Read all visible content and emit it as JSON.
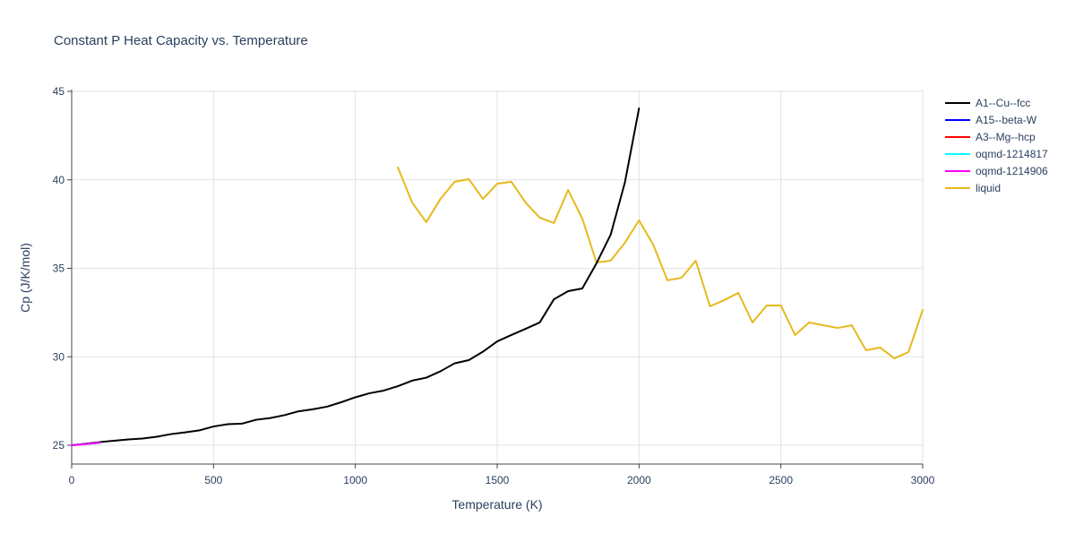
{
  "chart_data": {
    "type": "line",
    "title": "Constant P Heat Capacity vs. Temperature",
    "xlabel": "Temperature (K)",
    "ylabel": "Cp (J/K/mol)",
    "xlim": [
      0,
      3000
    ],
    "ylim": [
      24,
      45
    ],
    "xticks": [
      0,
      500,
      1000,
      1500,
      2000,
      2500,
      3000
    ],
    "xtick_labels": [
      "0",
      "500",
      "1000",
      "1500",
      "2000",
      "2500",
      "3000"
    ],
    "yticks": [
      25,
      30,
      35,
      40,
      45
    ],
    "ytick_labels": [
      "25",
      "30",
      "35",
      "40",
      "45"
    ],
    "grid": true,
    "legend_position": "right",
    "series": [
      {
        "name": "A1--Cu--fcc",
        "color": "#000000",
        "x": [
          0,
          100,
          200,
          250,
          300,
          350,
          400,
          450,
          500,
          550,
          600,
          650,
          700,
          750,
          800,
          850,
          900,
          950,
          1000,
          1050,
          1100,
          1150,
          1200,
          1250,
          1300,
          1350,
          1400,
          1450,
          1500,
          1550,
          1600,
          1650,
          1700,
          1750,
          1800,
          1850,
          1900,
          1950,
          2000
        ],
        "y": [
          25.0,
          25.18,
          25.33,
          25.38,
          25.48,
          25.63,
          25.73,
          25.84,
          26.06,
          26.19,
          26.22,
          26.44,
          26.54,
          26.7,
          26.92,
          27.03,
          27.18,
          27.43,
          27.71,
          27.94,
          28.09,
          28.34,
          28.65,
          28.82,
          29.18,
          29.63,
          29.81,
          30.29,
          30.87,
          31.23,
          31.58,
          31.94,
          33.25,
          33.71,
          33.86,
          35.28,
          36.9,
          39.84,
          44.04
        ]
      },
      {
        "name": "A15--beta-W",
        "color": "#0000ff",
        "x": [
          0,
          50,
          100
        ],
        "y": [
          25.0,
          25.07,
          25.14
        ]
      },
      {
        "name": "A3--Mg--hcp",
        "color": "#ff0000",
        "x": [
          0,
          50,
          100
        ],
        "y": [
          25.0,
          25.07,
          25.14
        ]
      },
      {
        "name": "oqmd-1214817",
        "color": "#00ffff",
        "x": [
          0,
          50,
          100
        ],
        "y": [
          25.0,
          25.07,
          25.14
        ]
      },
      {
        "name": "oqmd-1214906",
        "color": "#ff00ff",
        "x": [
          0,
          50,
          100
        ],
        "y": [
          25.0,
          25.07,
          25.15
        ]
      },
      {
        "name": "liquid",
        "color": "#e6b91e",
        "x": [
          1150,
          1200,
          1250,
          1300,
          1350,
          1400,
          1450,
          1500,
          1550,
          1600,
          1650,
          1700,
          1750,
          1800,
          1850,
          1900,
          1950,
          2000,
          2050,
          2100,
          2150,
          2200,
          2250,
          2300,
          2350,
          2400,
          2450,
          2500,
          2550,
          2600,
          2650,
          2700,
          2750,
          2800,
          2850,
          2900,
          2950,
          3000
        ],
        "y": [
          40.7,
          38.72,
          37.61,
          38.92,
          39.89,
          40.04,
          38.92,
          39.78,
          39.89,
          38.72,
          37.86,
          37.56,
          39.43,
          37.81,
          35.33,
          35.43,
          36.44,
          37.71,
          36.34,
          34.32,
          34.47,
          35.43,
          32.85,
          33.2,
          33.61,
          31.94,
          32.9,
          32.9,
          31.23,
          31.94,
          31.78,
          31.63,
          31.78,
          30.37,
          30.52,
          29.91,
          30.27,
          32.65
        ]
      }
    ]
  }
}
